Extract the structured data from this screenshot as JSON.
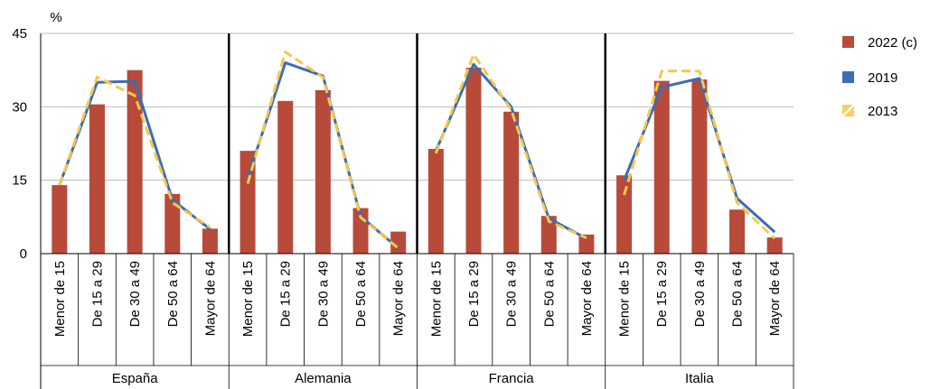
{
  "chart_data": {
    "type": "bar",
    "ylabel": "%",
    "ylim": [
      0,
      45
    ],
    "yticks": [
      0,
      15,
      30,
      45
    ],
    "grid": true,
    "legend_position": "right",
    "categories": [
      "Menor de 15",
      "De 15 a 29",
      "De 30 a 49",
      "De 50 a 64",
      "Mayor de 64"
    ],
    "groups": [
      "España",
      "Alemania",
      "Francia",
      "Italia"
    ],
    "colors": {
      "bar": "#b84a3a",
      "line2019": "#3a6db3",
      "line2013": "#f5c84c"
    },
    "series": [
      {
        "name": "2022 (c)",
        "kind": "bar",
        "values": [
          [
            14,
            30.5,
            37.5,
            12.2,
            5.1
          ],
          [
            21,
            31.2,
            33.4,
            9.3,
            4.5
          ],
          [
            21.4,
            38,
            29,
            7.7,
            3.9
          ],
          [
            16,
            35.3,
            35.6,
            9,
            3.3
          ]
        ]
      },
      {
        "name": "2019",
        "kind": "line",
        "values": [
          [
            14,
            35,
            35.2,
            11,
            5
          ],
          [
            15.5,
            39,
            36.3,
            7.6,
            1.1
          ],
          [
            21,
            38.7,
            30,
            7.2,
            3.1
          ],
          [
            15,
            34,
            35.8,
            11.3,
            4.4
          ]
        ]
      },
      {
        "name": "2013",
        "kind": "line-dashed",
        "values": [
          [
            14,
            36.1,
            32.3,
            10.4,
            5.4
          ],
          [
            14.3,
            41.2,
            36,
            7.4,
            1.1
          ],
          [
            20.5,
            40.7,
            29.4,
            6.6,
            3.2
          ],
          [
            12,
            37.3,
            37.3,
            10.4,
            3.1
          ]
        ]
      }
    ]
  }
}
